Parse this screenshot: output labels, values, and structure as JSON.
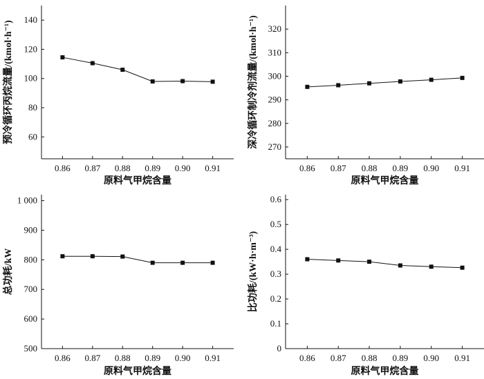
{
  "chart_data": [
    {
      "id": "chart-precool",
      "type": "line",
      "xlabel": "原料气甲烷含量",
      "ylabel": "预冷循环丙烷流量/(kmol·h⁻¹)",
      "x": [
        0.86,
        0.87,
        0.88,
        0.89,
        0.9,
        0.91
      ],
      "x_tick_labels": [
        "0.86",
        "0.87",
        "0.88",
        "0.89",
        "0.90",
        "0.91"
      ],
      "xlim": [
        0.853,
        0.917
      ],
      "ylim": [
        45,
        150
      ],
      "y_ticks": [
        60,
        80,
        100,
        120,
        140
      ],
      "y_tick_labels": [
        "60",
        "80",
        "100",
        "120",
        "140"
      ],
      "series": [
        {
          "values": [
            114.5,
            110.5,
            106.0,
            98.0,
            98.2,
            97.8
          ]
        }
      ],
      "grid": false
    },
    {
      "id": "chart-deepcool",
      "type": "line",
      "xlabel": "原料气甲烷含量",
      "ylabel": "深冷循环制冷剂流量/(kmol·h⁻¹)",
      "x": [
        0.86,
        0.87,
        0.88,
        0.89,
        0.9,
        0.91
      ],
      "x_tick_labels": [
        "0.86",
        "0.87",
        "0.88",
        "0.89",
        "0.90",
        "0.91"
      ],
      "xlim": [
        0.853,
        0.917
      ],
      "ylim": [
        265,
        330
      ],
      "y_ticks": [
        270,
        280,
        290,
        300,
        310,
        320
      ],
      "y_tick_labels": [
        "270",
        "280",
        "290",
        "300",
        "310",
        "320"
      ],
      "series": [
        {
          "values": [
            295.5,
            296.2,
            297.0,
            297.8,
            298.5,
            299.3
          ]
        }
      ],
      "grid": false
    },
    {
      "id": "chart-total-power",
      "type": "line",
      "xlabel": "原料气甲烷含量",
      "ylabel": "总功耗/kW",
      "x": [
        0.86,
        0.87,
        0.88,
        0.89,
        0.9,
        0.91
      ],
      "x_tick_labels": [
        "0.86",
        "0.87",
        "0.88",
        "0.89",
        "0.90",
        "0.91"
      ],
      "xlim": [
        0.853,
        0.917
      ],
      "ylim": [
        500,
        1020
      ],
      "y_ticks": [
        500,
        600,
        700,
        800,
        900,
        1000
      ],
      "y_tick_labels": [
        "500",
        "600",
        "700",
        "800",
        "900",
        "1 000"
      ],
      "series": [
        {
          "values": [
            812,
            812,
            811,
            790,
            790,
            790
          ]
        }
      ],
      "grid": false
    },
    {
      "id": "chart-specific-power",
      "type": "line",
      "xlabel": "原料气甲烷含量",
      "ylabel": "比功耗/(kW·h·m⁻³)",
      "x": [
        0.86,
        0.87,
        0.88,
        0.89,
        0.9,
        0.91
      ],
      "x_tick_labels": [
        "0.86",
        "0.87",
        "0.88",
        "0.89",
        "0.90",
        "0.91"
      ],
      "xlim": [
        0.853,
        0.917
      ],
      "ylim": [
        0,
        0.62
      ],
      "y_ticks": [
        0,
        0.1,
        0.2,
        0.3,
        0.4,
        0.5,
        0.6
      ],
      "y_tick_labels": [
        "0",
        "0.1",
        "0.2",
        "0.3",
        "0.4",
        "0.5",
        "0.6"
      ],
      "series": [
        {
          "values": [
            0.36,
            0.355,
            0.35,
            0.335,
            0.33,
            0.326
          ]
        }
      ],
      "grid": false
    }
  ]
}
